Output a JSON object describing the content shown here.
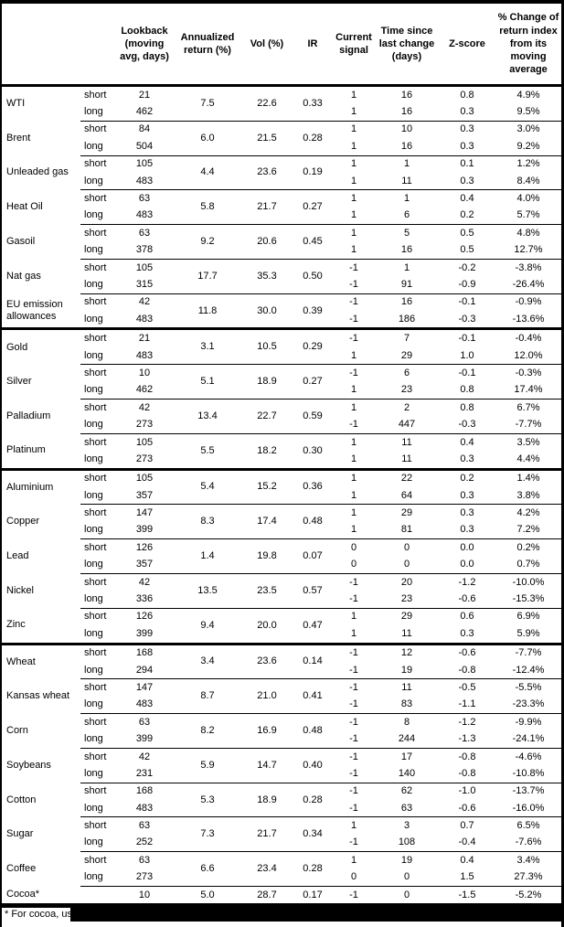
{
  "page": {
    "background": "#ffffff",
    "border_color": "#000000",
    "text_color": "#000000"
  },
  "header": {
    "columns": [
      "",
      "",
      "Lookback (moving avg, days)",
      "Annualized return (%)",
      "Vol (%)",
      "IR",
      "Current signal",
      "Time since last change (days)",
      "Z-score",
      "% Change of return index from its moving average"
    ]
  },
  "table": {
    "commodities": [
      {
        "name": "WTI",
        "group_start": false,
        "annualized_return": "7.5",
        "vol": "22.6",
        "ir": "0.33",
        "rows": [
          {
            "period": "short",
            "lookback": "21",
            "signal": "1",
            "days": "16",
            "zscore": "0.8",
            "pct_change": "4.9%"
          },
          {
            "period": "long",
            "lookback": "462",
            "signal": "1",
            "days": "16",
            "zscore": "0.3",
            "pct_change": "9.5%"
          }
        ]
      },
      {
        "name": "Brent",
        "group_start": false,
        "annualized_return": "6.0",
        "vol": "21.5",
        "ir": "0.28",
        "rows": [
          {
            "period": "short",
            "lookback": "84",
            "signal": "1",
            "days": "10",
            "zscore": "0.3",
            "pct_change": "3.0%"
          },
          {
            "period": "long",
            "lookback": "504",
            "signal": "1",
            "days": "16",
            "zscore": "0.3",
            "pct_change": "9.2%"
          }
        ]
      },
      {
        "name": "Unleaded gas",
        "group_start": false,
        "annualized_return": "4.4",
        "vol": "23.6",
        "ir": "0.19",
        "rows": [
          {
            "period": "short",
            "lookback": "105",
            "signal": "1",
            "days": "1",
            "zscore": "0.1",
            "pct_change": "1.2%"
          },
          {
            "period": "long",
            "lookback": "483",
            "signal": "1",
            "days": "11",
            "zscore": "0.3",
            "pct_change": "8.4%"
          }
        ]
      },
      {
        "name": "Heat Oil",
        "group_start": false,
        "annualized_return": "5.8",
        "vol": "21.7",
        "ir": "0.27",
        "rows": [
          {
            "period": "short",
            "lookback": "63",
            "signal": "1",
            "days": "1",
            "zscore": "0.4",
            "pct_change": "4.0%"
          },
          {
            "period": "long",
            "lookback": "483",
            "signal": "1",
            "days": "6",
            "zscore": "0.2",
            "pct_change": "5.7%"
          }
        ]
      },
      {
        "name": "Gasoil",
        "group_start": false,
        "annualized_return": "9.2",
        "vol": "20.6",
        "ir": "0.45",
        "rows": [
          {
            "period": "short",
            "lookback": "63",
            "signal": "1",
            "days": "5",
            "zscore": "0.5",
            "pct_change": "4.8%"
          },
          {
            "period": "long",
            "lookback": "378",
            "signal": "1",
            "days": "16",
            "zscore": "0.5",
            "pct_change": "12.7%"
          }
        ]
      },
      {
        "name": "Nat gas",
        "group_start": false,
        "annualized_return": "17.7",
        "vol": "35.3",
        "ir": "0.50",
        "rows": [
          {
            "period": "short",
            "lookback": "105",
            "signal": "-1",
            "days": "1",
            "zscore": "-0.2",
            "pct_change": "-3.8%"
          },
          {
            "period": "long",
            "lookback": "315",
            "signal": "-1",
            "days": "91",
            "zscore": "-0.9",
            "pct_change": "-26.4%"
          }
        ]
      },
      {
        "name": "EU emission allowances",
        "group_start": false,
        "annualized_return": "11.8",
        "vol": "30.0",
        "ir": "0.39",
        "rows": [
          {
            "period": "short",
            "lookback": "42",
            "signal": "-1",
            "days": "16",
            "zscore": "-0.1",
            "pct_change": "-0.9%"
          },
          {
            "period": "long",
            "lookback": "483",
            "signal": "-1",
            "days": "186",
            "zscore": "-0.3",
            "pct_change": "-13.6%"
          }
        ]
      },
      {
        "name": "Gold",
        "group_start": true,
        "annualized_return": "3.1",
        "vol": "10.5",
        "ir": "0.29",
        "rows": [
          {
            "period": "short",
            "lookback": "21",
            "signal": "-1",
            "days": "7",
            "zscore": "-0.1",
            "pct_change": "-0.4%"
          },
          {
            "period": "long",
            "lookback": "483",
            "signal": "1",
            "days": "29",
            "zscore": "1.0",
            "pct_change": "12.0%"
          }
        ]
      },
      {
        "name": "Silver",
        "group_start": false,
        "annualized_return": "5.1",
        "vol": "18.9",
        "ir": "0.27",
        "rows": [
          {
            "period": "short",
            "lookback": "10",
            "signal": "-1",
            "days": "6",
            "zscore": "-0.1",
            "pct_change": "-0.3%"
          },
          {
            "period": "long",
            "lookback": "462",
            "signal": "1",
            "days": "23",
            "zscore": "0.8",
            "pct_change": "17.4%"
          }
        ]
      },
      {
        "name": "Palladium",
        "group_start": false,
        "annualized_return": "13.4",
        "vol": "22.7",
        "ir": "0.59",
        "rows": [
          {
            "period": "short",
            "lookback": "42",
            "signal": "1",
            "days": "2",
            "zscore": "0.8",
            "pct_change": "6.7%"
          },
          {
            "period": "long",
            "lookback": "273",
            "signal": "-1",
            "days": "447",
            "zscore": "-0.3",
            "pct_change": "-7.7%"
          }
        ]
      },
      {
        "name": "Platinum",
        "group_start": false,
        "annualized_return": "5.5",
        "vol": "18.2",
        "ir": "0.30",
        "rows": [
          {
            "period": "short",
            "lookback": "105",
            "signal": "1",
            "days": "11",
            "zscore": "0.4",
            "pct_change": "3.5%"
          },
          {
            "period": "long",
            "lookback": "273",
            "signal": "1",
            "days": "11",
            "zscore": "0.3",
            "pct_change": "4.4%"
          }
        ]
      },
      {
        "name": "Aluminium",
        "group_start": true,
        "annualized_return": "5.4",
        "vol": "15.2",
        "ir": "0.36",
        "rows": [
          {
            "period": "short",
            "lookback": "105",
            "signal": "1",
            "days": "22",
            "zscore": "0.2",
            "pct_change": "1.4%"
          },
          {
            "period": "long",
            "lookback": "357",
            "signal": "1",
            "days": "64",
            "zscore": "0.3",
            "pct_change": "3.8%"
          }
        ]
      },
      {
        "name": "Copper",
        "group_start": false,
        "annualized_return": "8.3",
        "vol": "17.4",
        "ir": "0.48",
        "rows": [
          {
            "period": "short",
            "lookback": "147",
            "signal": "1",
            "days": "29",
            "zscore": "0.3",
            "pct_change": "4.2%"
          },
          {
            "period": "long",
            "lookback": "399",
            "signal": "1",
            "days": "81",
            "zscore": "0.3",
            "pct_change": "7.2%"
          }
        ]
      },
      {
        "name": "Lead",
        "group_start": false,
        "annualized_return": "1.4",
        "vol": "19.8",
        "ir": "0.07",
        "rows": [
          {
            "period": "short",
            "lookback": "126",
            "signal": "0",
            "days": "0",
            "zscore": "0.0",
            "pct_change": "0.2%"
          },
          {
            "period": "long",
            "lookback": "357",
            "signal": "0",
            "days": "0",
            "zscore": "0.0",
            "pct_change": "0.7%"
          }
        ]
      },
      {
        "name": "Nickel",
        "group_start": false,
        "annualized_return": "13.5",
        "vol": "23.5",
        "ir": "0.57",
        "rows": [
          {
            "period": "short",
            "lookback": "42",
            "signal": "-1",
            "days": "20",
            "zscore": "-1.2",
            "pct_change": "-10.0%"
          },
          {
            "period": "long",
            "lookback": "336",
            "signal": "-1",
            "days": "23",
            "zscore": "-0.6",
            "pct_change": "-15.3%"
          }
        ]
      },
      {
        "name": "Zinc",
        "group_start": false,
        "annualized_return": "9.4",
        "vol": "20.0",
        "ir": "0.47",
        "rows": [
          {
            "period": "short",
            "lookback": "126",
            "signal": "1",
            "days": "29",
            "zscore": "0.6",
            "pct_change": "6.9%"
          },
          {
            "period": "long",
            "lookback": "399",
            "signal": "1",
            "days": "11",
            "zscore": "0.3",
            "pct_change": "5.9%"
          }
        ]
      },
      {
        "name": "Wheat",
        "group_start": true,
        "annualized_return": "3.4",
        "vol": "23.6",
        "ir": "0.14",
        "rows": [
          {
            "period": "short",
            "lookback": "168",
            "signal": "-1",
            "days": "12",
            "zscore": "-0.6",
            "pct_change": "-7.7%"
          },
          {
            "period": "long",
            "lookback": "294",
            "signal": "-1",
            "days": "19",
            "zscore": "-0.8",
            "pct_change": "-12.4%"
          }
        ]
      },
      {
        "name": "Kansas wheat",
        "group_start": false,
        "annualized_return": "8.7",
        "vol": "21.0",
        "ir": "0.41",
        "rows": [
          {
            "period": "short",
            "lookback": "147",
            "signal": "-1",
            "days": "11",
            "zscore": "-0.5",
            "pct_change": "-5.5%"
          },
          {
            "period": "long",
            "lookback": "483",
            "signal": "-1",
            "days": "83",
            "zscore": "-1.1",
            "pct_change": "-23.3%"
          }
        ]
      },
      {
        "name": "Corn",
        "group_start": false,
        "annualized_return": "8.2",
        "vol": "16.9",
        "ir": "0.48",
        "rows": [
          {
            "period": "short",
            "lookback": "63",
            "signal": "-1",
            "days": "8",
            "zscore": "-1.2",
            "pct_change": "-9.9%"
          },
          {
            "period": "long",
            "lookback": "399",
            "signal": "-1",
            "days": "244",
            "zscore": "-1.3",
            "pct_change": "-24.1%"
          }
        ]
      },
      {
        "name": "Soybeans",
        "group_start": false,
        "annualized_return": "5.9",
        "vol": "14.7",
        "ir": "0.40",
        "rows": [
          {
            "period": "short",
            "lookback": "42",
            "signal": "-1",
            "days": "17",
            "zscore": "-0.8",
            "pct_change": "-4.6%"
          },
          {
            "period": "long",
            "lookback": "231",
            "signal": "-1",
            "days": "140",
            "zscore": "-0.8",
            "pct_change": "-10.8%"
          }
        ]
      },
      {
        "name": "Cotton",
        "group_start": false,
        "annualized_return": "5.3",
        "vol": "18.9",
        "ir": "0.28",
        "rows": [
          {
            "period": "short",
            "lookback": "168",
            "signal": "-1",
            "days": "62",
            "zscore": "-1.0",
            "pct_change": "-13.7%"
          },
          {
            "period": "long",
            "lookback": "483",
            "signal": "-1",
            "days": "63",
            "zscore": "-0.6",
            "pct_change": "-16.0%"
          }
        ]
      },
      {
        "name": "Sugar",
        "group_start": false,
        "annualized_return": "7.3",
        "vol": "21.7",
        "ir": "0.34",
        "rows": [
          {
            "period": "short",
            "lookback": "63",
            "signal": "1",
            "days": "3",
            "zscore": "0.7",
            "pct_change": "6.5%"
          },
          {
            "period": "long",
            "lookback": "252",
            "signal": "-1",
            "days": "108",
            "zscore": "-0.4",
            "pct_change": "-7.6%"
          }
        ]
      },
      {
        "name": "Coffee",
        "group_start": false,
        "annualized_return": "6.6",
        "vol": "23.4",
        "ir": "0.28",
        "rows": [
          {
            "period": "short",
            "lookback": "63",
            "signal": "1",
            "days": "19",
            "zscore": "0.4",
            "pct_change": "3.4%"
          },
          {
            "period": "long",
            "lookback": "273",
            "signal": "0",
            "days": "0",
            "zscore": "1.5",
            "pct_change": "27.3%"
          }
        ]
      },
      {
        "name": "Cocoa*",
        "group_start": false,
        "annualized_return": "5.0",
        "vol": "28.7",
        "ir": "0.17",
        "rows": [
          {
            "period": "",
            "lookback": "10",
            "signal": "-1",
            "days": "0",
            "zscore": "-1.5",
            "pct_change": "-5.2%"
          }
        ]
      }
    ]
  },
  "footnote": {
    "visible_text": "* For cocoa, uses",
    "redacted": true,
    "redaction_color": "#000000"
  }
}
